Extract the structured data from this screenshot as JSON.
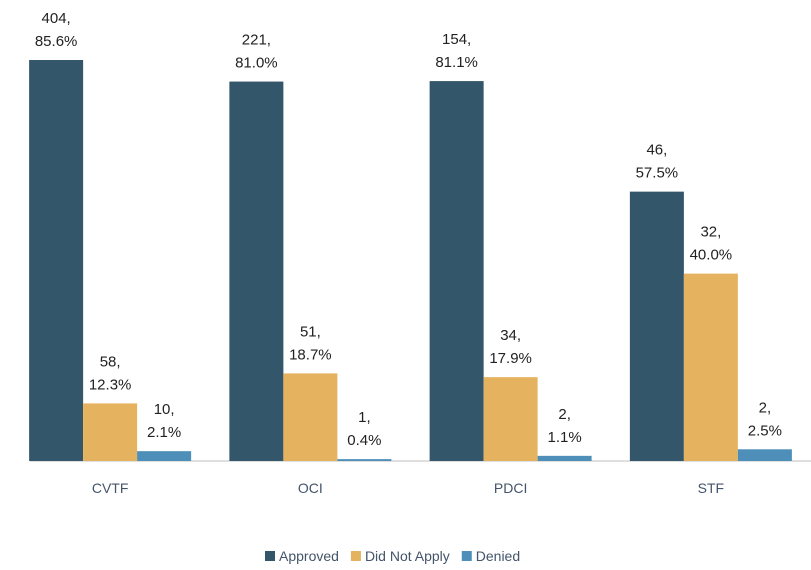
{
  "chart_data": {
    "type": "bar",
    "categories": [
      "CVTF",
      "OCI",
      "PDCI",
      "STF"
    ],
    "ylim": [
      0,
      90
    ],
    "series": [
      {
        "name": "Approved",
        "color": "#34566b",
        "values": [
          85.6,
          81.0,
          81.1,
          57.5
        ],
        "value_labels": [
          "404, 85.6%",
          "221, 81.0%",
          "154, 81.1%",
          "46, 57.5%"
        ]
      },
      {
        "name": "Did Not Apply",
        "color": "#e5b35f",
        "values": [
          12.3,
          18.7,
          17.9,
          40.0
        ],
        "value_labels": [
          "58, 12.3%",
          "51, 18.7%",
          "34, 17.9%",
          "32, 40.0%"
        ]
      },
      {
        "name": "Denied",
        "color": "#4d8fb8",
        "values": [
          2.1,
          0.4,
          1.1,
          2.5
        ],
        "value_labels": [
          "10, 2.1%",
          "1, 0.4%",
          "2, 1.1%",
          "2, 2.5%"
        ]
      }
    ],
    "legend": "bottom"
  }
}
